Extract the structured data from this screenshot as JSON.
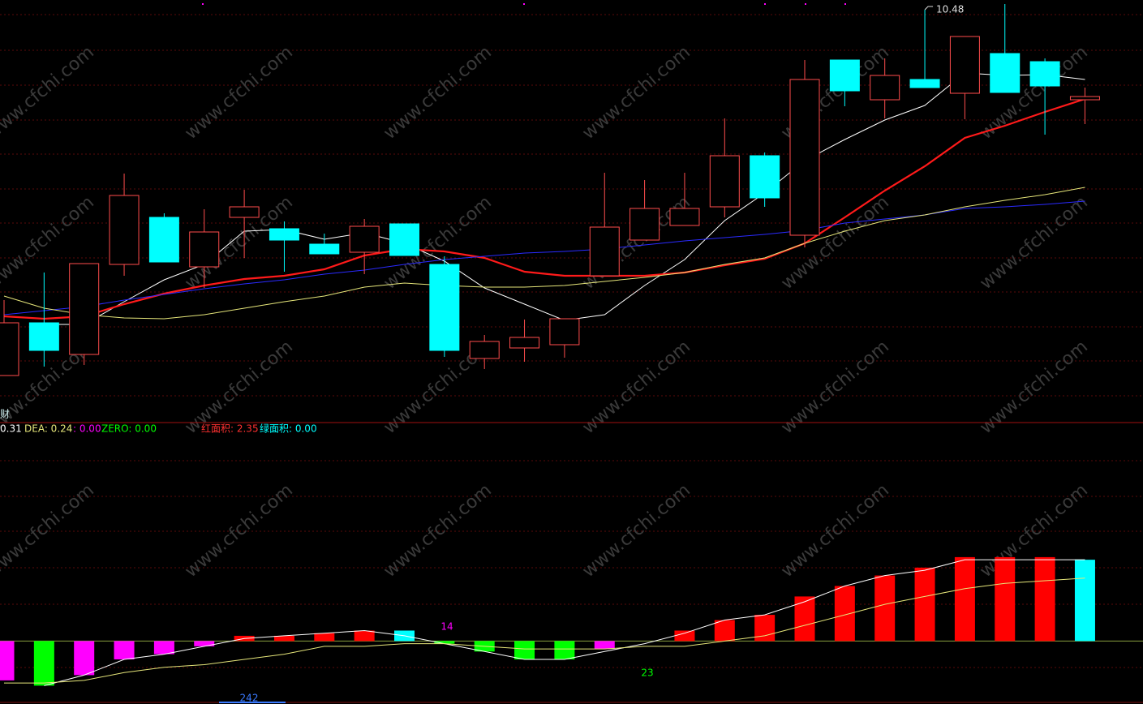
{
  "chart_data": [
    {
      "type": "candlestick",
      "title": "财",
      "watermark": "www.cfchi.com",
      "categories": [
        null,
        null,
        null,
        null,
        null,
        null,
        null,
        null,
        null,
        null,
        null,
        null,
        null,
        null,
        null,
        null,
        null,
        null,
        null,
        null,
        null,
        null,
        null,
        null,
        null,
        null,
        null,
        null
      ],
      "open": [
        5.97,
        6.62,
        6.23,
        7.34,
        7.92,
        7.31,
        7.92,
        7.78,
        7.59,
        7.49,
        7.84,
        7.34,
        6.18,
        6.31,
        6.35,
        7.2,
        7.64,
        7.82,
        8.05,
        8.68,
        7.7,
        9.86,
        9.37,
        9.62,
        9.45,
        9.94,
        9.84,
        9.37
      ],
      "close": [
        6.62,
        6.28,
        7.35,
        8.19,
        7.37,
        7.74,
        8.05,
        7.64,
        7.47,
        7.81,
        7.45,
        6.28,
        6.39,
        6.44,
        6.67,
        7.8,
        8.03,
        8.03,
        8.68,
        8.16,
        9.62,
        9.48,
        9.67,
        9.52,
        10.15,
        9.46,
        9.54,
        9.41
      ],
      "high": [
        6.9,
        7.24,
        7.35,
        8.46,
        7.97,
        8.02,
        8.26,
        7.87,
        7.72,
        7.9,
        7.84,
        7.44,
        6.47,
        6.66,
        6.67,
        8.47,
        8.38,
        8.47,
        9.14,
        8.72,
        9.86,
        9.86,
        9.88,
        10.48,
        10.15,
        10.55,
        9.88,
        9.52
      ],
      "low": [
        5.97,
        6.08,
        6.1,
        7.2,
        7.37,
        7.05,
        7.42,
        7.25,
        7.47,
        7.22,
        7.45,
        6.2,
        6.05,
        6.14,
        6.19,
        7.2,
        7.64,
        7.82,
        7.92,
        8.05,
        7.55,
        9.29,
        9.14,
        9.52,
        9.13,
        9.46,
        8.94,
        9.07
      ],
      "up_color": "#ff4d4d",
      "down_color": "#00ffff",
      "ylim": [
        5.4,
        10.6
      ],
      "lines": [
        {
          "color": "#ffffff",
          "values": [
            null,
            6.6,
            6.6,
            6.88,
            7.15,
            7.34,
            7.75,
            7.77,
            7.65,
            7.73,
            7.6,
            7.38,
            7.05,
            6.85,
            6.65,
            6.72,
            7.08,
            7.4,
            7.88,
            8.22,
            8.62,
            8.88,
            9.12,
            9.3,
            9.7,
            9.67,
            9.68,
            9.62
          ]
        },
        {
          "color": "#ff1a1a",
          "values": [
            6.7,
            6.67,
            6.7,
            6.85,
            6.98,
            7.08,
            7.16,
            7.2,
            7.28,
            7.45,
            7.53,
            7.5,
            7.42,
            7.25,
            7.2,
            7.2,
            7.2,
            7.24,
            7.33,
            7.41,
            7.6,
            7.92,
            8.25,
            8.55,
            8.9,
            9.05,
            9.22,
            9.38
          ]
        },
        {
          "color": "#2a2aff",
          "values": [
            6.72,
            6.77,
            6.82,
            6.9,
            6.97,
            7.04,
            7.1,
            7.15,
            7.22,
            7.27,
            7.34,
            7.4,
            7.44,
            7.48,
            7.5,
            7.53,
            7.58,
            7.63,
            7.67,
            7.71,
            7.76,
            7.85,
            7.9,
            7.95,
            8.03,
            8.05,
            8.08,
            8.12
          ]
        },
        {
          "color": "#e6e67a",
          "values": [
            6.95,
            6.8,
            6.72,
            6.68,
            6.67,
            6.72,
            6.8,
            6.88,
            6.95,
            7.06,
            7.11,
            7.08,
            7.06,
            7.06,
            7.08,
            7.13,
            7.18,
            7.24,
            7.34,
            7.42,
            7.6,
            7.75,
            7.88,
            7.95,
            8.05,
            8.13,
            8.2,
            8.29
          ]
        }
      ]
    },
    {
      "type": "bar",
      "categories": [
        null,
        null,
        null,
        null,
        null,
        null,
        null,
        null,
        null,
        null,
        null,
        null,
        null,
        null,
        null,
        null,
        null,
        null,
        null,
        null,
        null,
        null,
        null,
        null,
        null,
        null,
        null,
        null
      ],
      "values": [
        -0.15,
        -0.17,
        -0.13,
        -0.07,
        -0.05,
        -0.02,
        0.02,
        0.02,
        0.03,
        0.04,
        0.04,
        -0.01,
        -0.04,
        -0.07,
        -0.07,
        -0.03,
        0,
        0.04,
        0.08,
        0.1,
        0.17,
        0.21,
        0.25,
        0.28,
        0.32,
        0.32,
        0.32,
        0.31
      ],
      "colors": [
        "#ff00ff",
        "#00ff00",
        "#ff00ff",
        "#ff00ff",
        "#ff00ff",
        "#ff00ff",
        "#ff0000",
        "#ff0000",
        "#ff0000",
        "#ff0000",
        "#00ffff",
        "#00ff00",
        "#00ff00",
        "#00ff00",
        "#00ff00",
        "#ff00ff",
        "#ff0000",
        "#ff0000",
        "#ff0000",
        "#ff0000",
        "#ff0000",
        "#ff0000",
        "#ff0000",
        "#ff0000",
        "#ff0000",
        "#ff0000",
        "#ff0000",
        "#00ffff"
      ],
      "ylim": [
        -0.24,
        0.83
      ],
      "lines": [
        {
          "color": "#ffffff",
          "values": [
            null,
            -0.17,
            -0.13,
            -0.07,
            -0.05,
            -0.02,
            0.01,
            0.02,
            0.03,
            0.04,
            0.02,
            -0.01,
            -0.04,
            -0.07,
            -0.07,
            -0.04,
            -0.01,
            0.03,
            0.08,
            0.1,
            0.15,
            0.21,
            0.25,
            0.27,
            0.31,
            0.31,
            0.31,
            0.31
          ]
        },
        {
          "color": "#e6e67a",
          "values": [
            -0.16,
            -0.16,
            -0.15,
            -0.12,
            -0.1,
            -0.09,
            -0.07,
            -0.05,
            -0.02,
            -0.02,
            -0.01,
            -0.01,
            -0.02,
            -0.03,
            -0.03,
            -0.03,
            -0.02,
            -0.02,
            0,
            0.02,
            0.06,
            0.1,
            0.14,
            0.17,
            0.2,
            0.22,
            0.23,
            0.24
          ]
        }
      ],
      "legend": [
        {
          "text": "0.31",
          "color": "#ffffff"
        },
        {
          "text": "DEA: 0.24",
          "color": "#e6e67a"
        },
        {
          "text": ": 0.00",
          "color": "#ff00ff"
        },
        {
          "text": "ZERO: 0.00",
          "color": "#00ff00"
        },
        {
          "text": "红面积: 2.35",
          "color": "#ff3030"
        },
        {
          "text": "绿面积: 0.00",
          "color": "#00ffff"
        }
      ],
      "annotations": [
        {
          "text": 14,
          "color": "#ff00ff"
        },
        {
          "text": 23,
          "color": "#00ff00"
        },
        {
          "text": 242,
          "color": "#3a7aff"
        }
      ]
    }
  ]
}
